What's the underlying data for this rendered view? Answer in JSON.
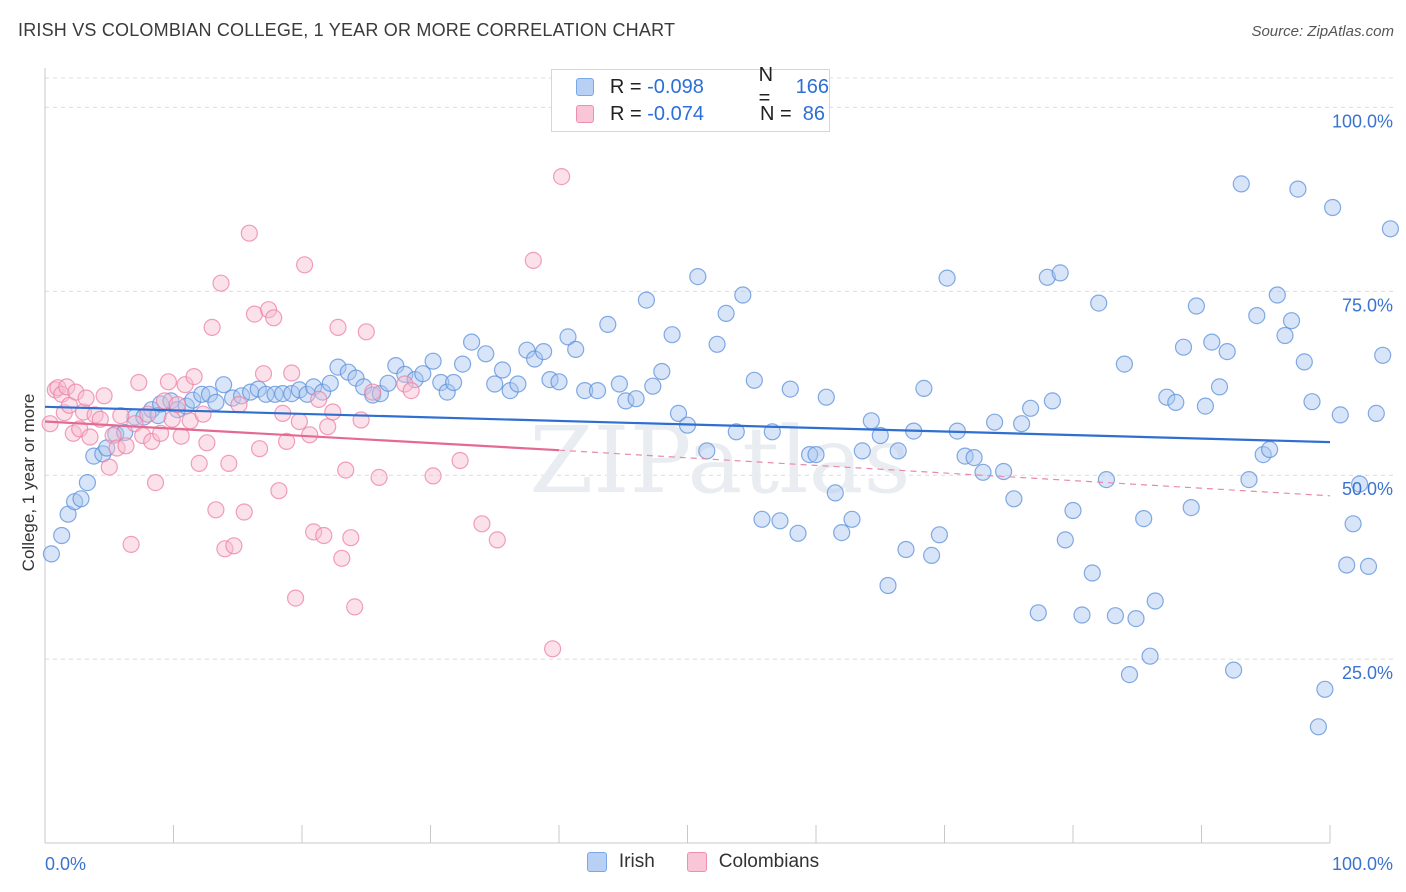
{
  "title": "IRISH VS COLOMBIAN COLLEGE, 1 YEAR OR MORE CORRELATION CHART",
  "source": "Source: ZipAtlas.com",
  "watermark": "ZIPatlas",
  "legend_stats": [
    {
      "r_label": "R = ",
      "r_value": "-0.098",
      "n_label": "N = ",
      "n_value": "166",
      "color": "#7aa7e8",
      "fill": "#b8d0f4"
    },
    {
      "r_label": "R = ",
      "r_value": "-0.074",
      "n_label": "N = ",
      "n_value": " 86",
      "color": "#ef8fb0",
      "fill": "#f8c6d7"
    }
  ],
  "chart_data": {
    "type": "scatter",
    "title": "IRISH VS COLOMBIAN COLLEGE, 1 YEAR OR MORE CORRELATION CHART",
    "xlabel": "",
    "ylabel": "College, 1 year or more",
    "xlim": [
      0,
      100
    ],
    "ylim": [
      0,
      104
    ],
    "x_tick_labels": [
      "0.0%",
      "100.0%"
    ],
    "y_tick_labels": [
      "25.0%",
      "50.0%",
      "75.0%",
      "100.0%"
    ],
    "y_ticks": [
      25,
      50,
      75,
      100
    ],
    "grid": true,
    "legend": [
      "Irish",
      "Colombians"
    ],
    "series": [
      {
        "name": "Irish",
        "color": "#5b8fdb",
        "fill": "#a9c6f0",
        "trend": {
          "x": [
            0,
            100
          ],
          "y": [
            59.3,
            54.5
          ],
          "dashed_from": null
        },
        "points": [
          [
            0.5,
            39.3
          ],
          [
            1.3,
            41.8
          ],
          [
            1.8,
            44.7
          ],
          [
            2.3,
            46.4
          ],
          [
            2.8,
            46.8
          ],
          [
            3.3,
            49.0
          ],
          [
            3.8,
            52.6
          ],
          [
            4.5,
            52.9
          ],
          [
            4.8,
            53.7
          ],
          [
            5.5,
            55.6
          ],
          [
            6.2,
            55.8
          ],
          [
            7.0,
            57.9
          ],
          [
            7.7,
            57.9
          ],
          [
            8.3,
            58.9
          ],
          [
            8.8,
            58.1
          ],
          [
            9.0,
            59.7
          ],
          [
            9.8,
            60.1
          ],
          [
            10.3,
            58.9
          ],
          [
            11.0,
            59.4
          ],
          [
            11.5,
            60.2
          ],
          [
            12.2,
            61.0
          ],
          [
            12.8,
            61.0
          ],
          [
            13.3,
            59.9
          ],
          [
            13.9,
            62.3
          ],
          [
            14.6,
            60.5
          ],
          [
            15.3,
            60.8
          ],
          [
            16.0,
            61.3
          ],
          [
            16.6,
            61.7
          ],
          [
            17.2,
            61.0
          ],
          [
            17.9,
            61.0
          ],
          [
            18.5,
            61.1
          ],
          [
            19.2,
            61.1
          ],
          [
            19.8,
            61.6
          ],
          [
            20.4,
            61.0
          ],
          [
            20.9,
            62.0
          ],
          [
            21.6,
            61.3
          ],
          [
            22.2,
            62.5
          ],
          [
            22.8,
            64.7
          ],
          [
            23.6,
            64.0
          ],
          [
            24.2,
            63.2
          ],
          [
            24.8,
            62.0
          ],
          [
            25.5,
            60.9
          ],
          [
            26.1,
            61.1
          ],
          [
            26.7,
            62.5
          ],
          [
            27.3,
            64.9
          ],
          [
            28.0,
            63.7
          ],
          [
            28.8,
            63.0
          ],
          [
            29.4,
            63.8
          ],
          [
            30.2,
            65.5
          ],
          [
            30.8,
            62.6
          ],
          [
            31.3,
            61.3
          ],
          [
            31.8,
            62.6
          ],
          [
            32.5,
            65.1
          ],
          [
            33.2,
            68.1
          ],
          [
            34.3,
            66.5
          ],
          [
            35.0,
            62.4
          ],
          [
            35.6,
            64.3
          ],
          [
            36.2,
            61.5
          ],
          [
            36.8,
            62.4
          ],
          [
            37.5,
            67.0
          ],
          [
            38.1,
            65.8
          ],
          [
            38.8,
            66.8
          ],
          [
            39.3,
            63.0
          ],
          [
            40.0,
            62.7
          ],
          [
            40.7,
            68.8
          ],
          [
            41.3,
            67.1
          ],
          [
            42.0,
            61.5
          ],
          [
            43.0,
            61.5
          ],
          [
            43.8,
            70.5
          ],
          [
            44.7,
            62.4
          ],
          [
            45.2,
            60.1
          ],
          [
            46.0,
            60.4
          ],
          [
            46.8,
            73.8
          ],
          [
            47.3,
            62.1
          ],
          [
            48.0,
            64.1
          ],
          [
            48.8,
            69.1
          ],
          [
            49.3,
            58.4
          ],
          [
            50.0,
            56.8
          ],
          [
            50.8,
            77.0
          ],
          [
            51.5,
            53.3
          ],
          [
            52.3,
            67.8
          ],
          [
            53.0,
            72.0
          ],
          [
            53.8,
            55.9
          ],
          [
            54.3,
            74.5
          ],
          [
            55.2,
            62.9
          ],
          [
            55.8,
            44.0
          ],
          [
            56.6,
            55.9
          ],
          [
            57.2,
            43.8
          ],
          [
            58.0,
            61.7
          ],
          [
            58.6,
            42.1
          ],
          [
            59.5,
            52.8
          ],
          [
            60.0,
            52.8
          ],
          [
            60.8,
            60.6
          ],
          [
            61.5,
            47.6
          ],
          [
            62.0,
            42.2
          ],
          [
            62.8,
            44.0
          ],
          [
            63.6,
            53.3
          ],
          [
            64.3,
            57.4
          ],
          [
            65.0,
            55.4
          ],
          [
            65.6,
            35.0
          ],
          [
            66.4,
            53.3
          ],
          [
            67.0,
            39.9
          ],
          [
            67.6,
            56.0
          ],
          [
            68.4,
            61.8
          ],
          [
            69.0,
            39.1
          ],
          [
            69.6,
            41.9
          ],
          [
            70.2,
            76.8
          ],
          [
            71.0,
            56.0
          ],
          [
            71.6,
            52.6
          ],
          [
            72.3,
            52.4
          ],
          [
            73.0,
            50.4
          ],
          [
            73.9,
            57.2
          ],
          [
            74.6,
            50.5
          ],
          [
            75.4,
            46.8
          ],
          [
            76.0,
            57.0
          ],
          [
            76.7,
            59.1
          ],
          [
            77.3,
            31.3
          ],
          [
            78.0,
            76.9
          ],
          [
            78.4,
            60.1
          ],
          [
            79.0,
            77.5
          ],
          [
            79.4,
            41.2
          ],
          [
            80.0,
            45.2
          ],
          [
            80.7,
            31.0
          ],
          [
            81.5,
            36.7
          ],
          [
            82.0,
            73.4
          ],
          [
            82.6,
            49.4
          ],
          [
            83.3,
            30.9
          ],
          [
            84.0,
            65.1
          ],
          [
            84.4,
            22.9
          ],
          [
            84.9,
            30.5
          ],
          [
            85.5,
            44.1
          ],
          [
            86.0,
            25.4
          ],
          [
            86.4,
            32.9
          ],
          [
            87.3,
            60.6
          ],
          [
            88.0,
            59.9
          ],
          [
            88.6,
            67.4
          ],
          [
            89.2,
            45.6
          ],
          [
            89.6,
            73.0
          ],
          [
            90.3,
            59.4
          ],
          [
            90.8,
            68.1
          ],
          [
            91.4,
            62.0
          ],
          [
            92.0,
            66.8
          ],
          [
            92.5,
            23.5
          ],
          [
            93.1,
            89.6
          ],
          [
            93.7,
            49.4
          ],
          [
            94.3,
            71.7
          ],
          [
            94.8,
            52.8
          ],
          [
            95.3,
            53.5
          ],
          [
            95.9,
            74.5
          ],
          [
            96.5,
            69.0
          ],
          [
            97.0,
            71.0
          ],
          [
            97.5,
            88.9
          ],
          [
            98.0,
            65.4
          ],
          [
            98.6,
            60.0
          ],
          [
            99.1,
            15.8
          ],
          [
            99.6,
            20.9
          ],
          [
            100.2,
            86.4
          ],
          [
            100.8,
            58.2
          ],
          [
            101.3,
            37.8
          ],
          [
            101.8,
            43.4
          ],
          [
            102.3,
            48.8
          ],
          [
            103.0,
            37.6
          ],
          [
            103.6,
            58.4
          ],
          [
            104.1,
            66.3
          ],
          [
            104.7,
            83.5
          ]
        ]
      },
      {
        "name": "Colombians",
        "color": "#ee7fa4",
        "fill": "#f7bcd0",
        "trend": {
          "x": [
            0,
            40,
            100
          ],
          "y": [
            57.3,
            53.4,
            47.2
          ],
          "dashed_from": 40
        },
        "points": [
          [
            0.4,
            57.0
          ],
          [
            0.8,
            61.6
          ],
          [
            1.0,
            61.9
          ],
          [
            1.3,
            61.0
          ],
          [
            1.5,
            58.5
          ],
          [
            1.7,
            62.0
          ],
          [
            1.9,
            59.5
          ],
          [
            2.2,
            55.7
          ],
          [
            2.4,
            61.3
          ],
          [
            2.7,
            56.3
          ],
          [
            3.0,
            58.6
          ],
          [
            3.2,
            60.5
          ],
          [
            3.5,
            55.2
          ],
          [
            3.9,
            58.2
          ],
          [
            4.3,
            57.6
          ],
          [
            4.6,
            60.8
          ],
          [
            5.0,
            51.1
          ],
          [
            5.3,
            55.4
          ],
          [
            5.6,
            53.7
          ],
          [
            5.9,
            58.1
          ],
          [
            6.3,
            54.0
          ],
          [
            6.7,
            40.6
          ],
          [
            7.0,
            57.0
          ],
          [
            7.3,
            62.6
          ],
          [
            7.6,
            55.4
          ],
          [
            8.0,
            58.3
          ],
          [
            8.3,
            54.6
          ],
          [
            8.6,
            49.0
          ],
          [
            9.0,
            55.7
          ],
          [
            9.3,
            60.1
          ],
          [
            9.6,
            62.7
          ],
          [
            9.9,
            57.6
          ],
          [
            10.3,
            59.6
          ],
          [
            10.6,
            55.3
          ],
          [
            10.9,
            62.3
          ],
          [
            11.3,
            57.4
          ],
          [
            11.6,
            63.4
          ],
          [
            12.0,
            51.6
          ],
          [
            12.3,
            58.3
          ],
          [
            12.6,
            54.4
          ],
          [
            13.0,
            70.1
          ],
          [
            13.3,
            45.3
          ],
          [
            13.7,
            76.1
          ],
          [
            14.0,
            40.0
          ],
          [
            14.3,
            51.6
          ],
          [
            14.7,
            40.4
          ],
          [
            15.1,
            59.6
          ],
          [
            15.5,
            45.0
          ],
          [
            15.9,
            82.9
          ],
          [
            16.3,
            71.9
          ],
          [
            16.7,
            53.6
          ],
          [
            17.0,
            63.8
          ],
          [
            17.4,
            72.5
          ],
          [
            17.8,
            71.4
          ],
          [
            18.2,
            47.9
          ],
          [
            18.5,
            58.4
          ],
          [
            18.8,
            54.6
          ],
          [
            19.2,
            63.9
          ],
          [
            19.5,
            33.3
          ],
          [
            19.8,
            57.3
          ],
          [
            20.2,
            78.6
          ],
          [
            20.6,
            55.5
          ],
          [
            20.9,
            42.3
          ],
          [
            21.3,
            60.3
          ],
          [
            21.7,
            41.8
          ],
          [
            22.0,
            56.6
          ],
          [
            22.4,
            58.6
          ],
          [
            22.8,
            70.1
          ],
          [
            23.1,
            38.7
          ],
          [
            23.4,
            50.7
          ],
          [
            23.8,
            41.5
          ],
          [
            24.1,
            32.1
          ],
          [
            24.6,
            57.5
          ],
          [
            25.0,
            69.5
          ],
          [
            25.5,
            61.3
          ],
          [
            26.0,
            49.7
          ],
          [
            28.0,
            62.4
          ],
          [
            28.5,
            61.5
          ],
          [
            30.2,
            49.9
          ],
          [
            32.3,
            52.0
          ],
          [
            34.0,
            43.4
          ],
          [
            35.2,
            41.2
          ],
          [
            38.0,
            79.2
          ],
          [
            39.5,
            26.4
          ],
          [
            40.2,
            90.6
          ]
        ]
      }
    ]
  }
}
